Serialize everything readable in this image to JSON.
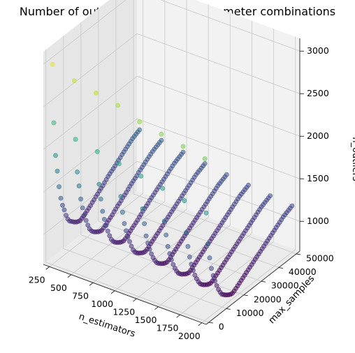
{
  "chart_data": {
    "type": "scatter",
    "projection": "3d",
    "title": "Number of outliers for different parameter combinations",
    "xlabel": "n_estimators",
    "ylabel": "max_samples",
    "zlabel": "n_outliers",
    "xlim": [
      180,
      2050
    ],
    "ylim": [
      -1500,
      52000
    ],
    "zlim": [
      650,
      3150
    ],
    "xticks": [
      250,
      500,
      750,
      1000,
      1250,
      1500,
      1750,
      2000
    ],
    "yticks": [
      0,
      10000,
      20000,
      30000,
      40000,
      50000
    ],
    "zticks": [
      1000,
      1500,
      2000,
      2500,
      3000
    ],
    "xtick_labels": [
      "250",
      "500",
      "750",
      "1000",
      "1250",
      "1500",
      "1750",
      "2000"
    ],
    "ytick_labels": [
      "0",
      "10000",
      "20000",
      "30000",
      "40000",
      "50000"
    ],
    "ztick_labels": [
      "1000",
      "1500",
      "2000",
      "2500",
      "3000"
    ],
    "colormap": "viridis",
    "color_range": [
      700,
      3100
    ],
    "grid": true,
    "n_estimators": [
      250,
      500,
      750,
      1000,
      1250,
      1500,
      1750,
      2000
    ],
    "max_samples": [
      256,
      1000,
      2000,
      3000,
      4000,
      5000,
      6000,
      7000,
      8000,
      9000,
      10000,
      11000,
      12000,
      13000,
      14000,
      15000,
      16000,
      17000,
      18000,
      19000,
      20000,
      21000,
      22000,
      23000,
      24000,
      25000,
      26000,
      27000,
      28000,
      29000,
      30000,
      31000,
      32000,
      33000,
      34000,
      35000,
      36000,
      37000,
      38000,
      39000,
      40000,
      41000,
      42000,
      43000,
      44000,
      45000,
      46000,
      47000,
      48000,
      49000,
      50000
    ],
    "n_outliers_by_n_estimators": [
      [
        3000,
        2300,
        1900,
        1700,
        1500,
        1350,
        1250,
        1180,
        1100,
        1040,
        1000,
        980,
        960,
        940,
        925,
        915,
        910,
        920,
        930,
        945,
        960,
        975,
        990,
        1010,
        1025,
        1045,
        1060,
        1080,
        1095,
        1110,
        1130,
        1150,
        1170,
        1185,
        1200,
        1215,
        1230,
        1250,
        1265,
        1280,
        1300,
        1315,
        1330,
        1345,
        1360,
        1375,
        1390,
        1400,
        1410,
        1420,
        1430
      ],
      [
        2900,
        2200,
        1800,
        1620,
        1450,
        1330,
        1230,
        1150,
        1080,
        1020,
        980,
        955,
        935,
        920,
        905,
        895,
        890,
        900,
        915,
        930,
        945,
        960,
        975,
        995,
        1010,
        1030,
        1045,
        1060,
        1080,
        1095,
        1110,
        1130,
        1150,
        1165,
        1180,
        1195,
        1210,
        1230,
        1245,
        1260,
        1275,
        1290,
        1305,
        1320,
        1335,
        1350,
        1360,
        1370,
        1380,
        1390,
        1400
      ],
      [
        2850,
        2150,
        1750,
        1560,
        1400,
        1290,
        1200,
        1120,
        1050,
        990,
        950,
        925,
        905,
        890,
        875,
        865,
        860,
        870,
        885,
        900,
        915,
        930,
        945,
        960,
        975,
        995,
        1010,
        1030,
        1045,
        1060,
        1075,
        1095,
        1110,
        1125,
        1140,
        1155,
        1170,
        1185,
        1200,
        1215,
        1230,
        1245,
        1260,
        1275,
        1290,
        1305,
        1315,
        1325,
        1335,
        1345,
        1355
      ],
      [
        2800,
        2100,
        1700,
        1500,
        1350,
        1250,
        1160,
        1090,
        1020,
        960,
        920,
        895,
        875,
        860,
        845,
        835,
        830,
        840,
        855,
        870,
        885,
        900,
        915,
        930,
        945,
        960,
        975,
        995,
        1010,
        1025,
        1040,
        1055,
        1070,
        1085,
        1100,
        1115,
        1130,
        1145,
        1160,
        1175,
        1190,
        1205,
        1220,
        1235,
        1250,
        1265,
        1275,
        1285,
        1295,
        1305,
        1315
      ],
      [
        2700,
        2050,
        1650,
        1460,
        1300,
        1200,
        1110,
        1040,
        980,
        930,
        890,
        865,
        845,
        830,
        815,
        805,
        800,
        810,
        825,
        840,
        855,
        870,
        885,
        900,
        915,
        930,
        945,
        960,
        975,
        990,
        1005,
        1020,
        1035,
        1050,
        1065,
        1080,
        1095,
        1110,
        1125,
        1140,
        1155,
        1170,
        1185,
        1200,
        1215,
        1230,
        1240,
        1250,
        1260,
        1270,
        1280
      ],
      [
        2650,
        2000,
        1600,
        1420,
        1270,
        1170,
        1080,
        1010,
        950,
        900,
        860,
        835,
        815,
        800,
        785,
        775,
        770,
        780,
        795,
        810,
        825,
        840,
        855,
        870,
        885,
        900,
        915,
        930,
        945,
        960,
        975,
        990,
        1005,
        1020,
        1035,
        1050,
        1065,
        1080,
        1095,
        1110,
        1125,
        1140,
        1155,
        1170,
        1185,
        1200,
        1210,
        1220,
        1230,
        1240,
        1250
      ],
      [
        2600,
        1950,
        1560,
        1380,
        1240,
        1140,
        1050,
        980,
        920,
        870,
        830,
        805,
        785,
        770,
        755,
        745,
        740,
        750,
        765,
        780,
        795,
        810,
        825,
        840,
        855,
        870,
        885,
        900,
        915,
        930,
        945,
        960,
        975,
        990,
        1005,
        1020,
        1035,
        1050,
        1065,
        1080,
        1095,
        1110,
        1125,
        1140,
        1155,
        1170,
        1180,
        1190,
        1200,
        1210,
        1220
      ],
      [
        2550,
        1900,
        1520,
        1340,
        1200,
        1100,
        1020,
        950,
        890,
        840,
        800,
        780,
        760,
        745,
        730,
        720,
        715,
        725,
        740,
        755,
        770,
        785,
        800,
        815,
        830,
        845,
        860,
        875,
        890,
        905,
        920,
        935,
        950,
        965,
        980,
        995,
        1010,
        1025,
        1040,
        1055,
        1070,
        1085,
        1100,
        1115,
        1130,
        1145,
        1155,
        1165,
        1175,
        1185,
        1195
      ]
    ]
  }
}
